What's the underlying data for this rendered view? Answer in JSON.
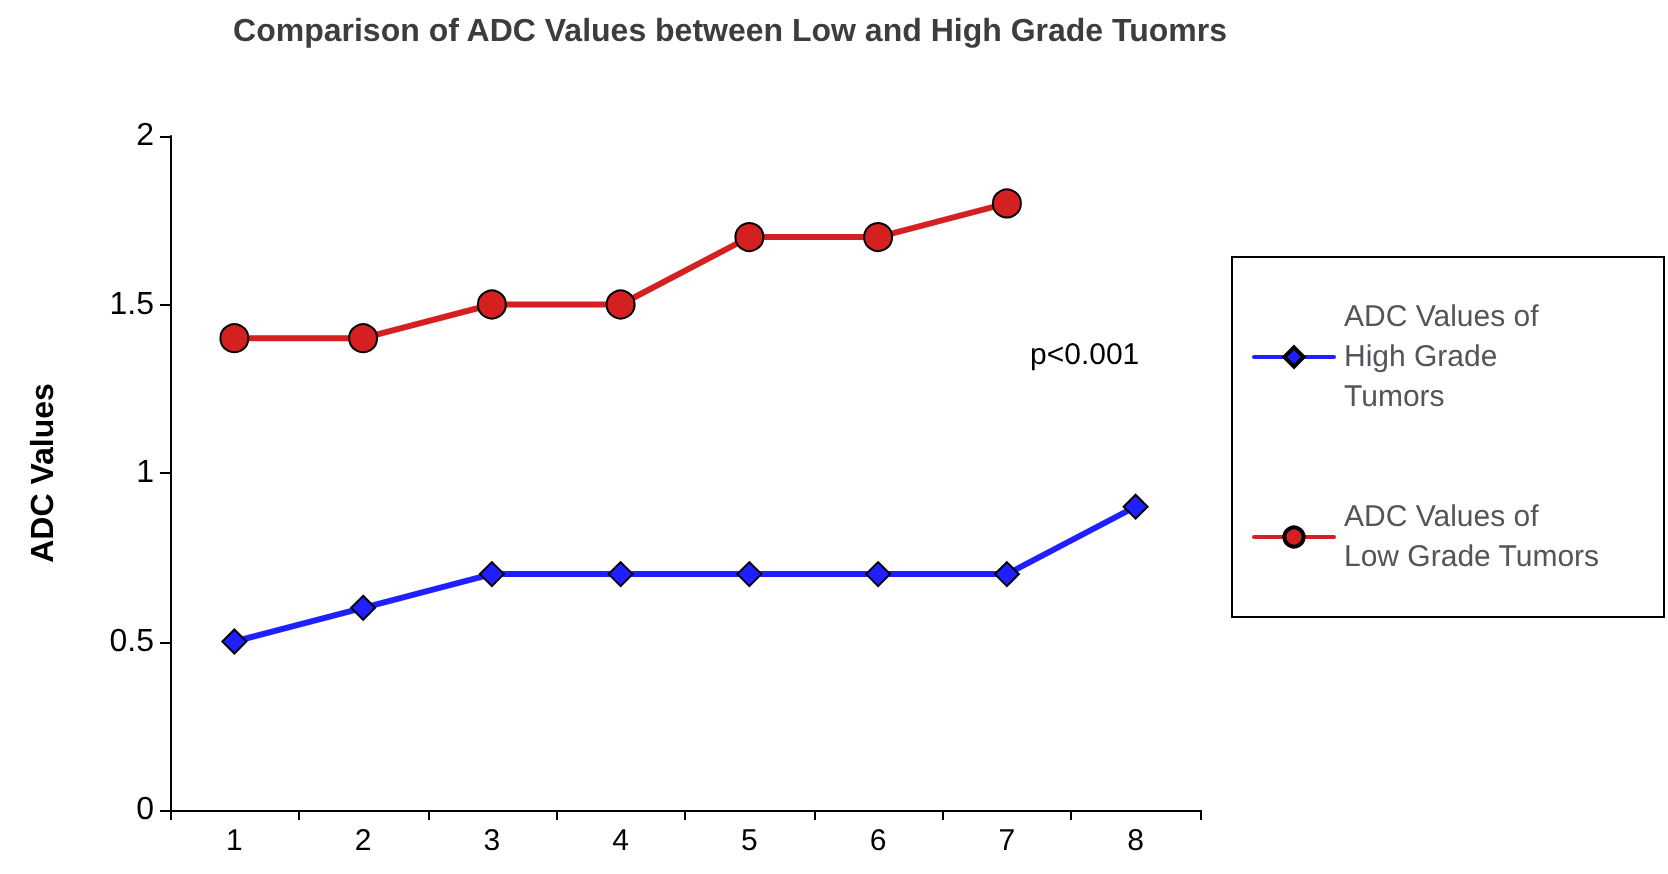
{
  "chart_data": {
    "type": "line",
    "title": "Comparison of ADC Values between Low and High Grade Tuomrs",
    "ylabel": "ADC Values",
    "categories": [
      "1",
      "2",
      "3",
      "4",
      "5",
      "6",
      "7",
      "8"
    ],
    "series": [
      {
        "name": "ADC Values of High Grade Tumors",
        "color": "#1f1fff",
        "marker": "diamond",
        "values": [
          0.5,
          0.6,
          0.7,
          0.7,
          0.7,
          0.7,
          0.7,
          0.9
        ]
      },
      {
        "name": "ADC Values of Low Grade Tumors",
        "color": "#d42020",
        "marker": "circle",
        "values": [
          1.4,
          1.4,
          1.5,
          1.5,
          1.7,
          1.7,
          1.8,
          null
        ]
      }
    ],
    "ylim": [
      0,
      2
    ],
    "yticks": [
      0,
      0.5,
      1,
      1.5,
      2
    ],
    "grid": false,
    "legend": "right",
    "annotations": [
      "p<0.001"
    ]
  }
}
